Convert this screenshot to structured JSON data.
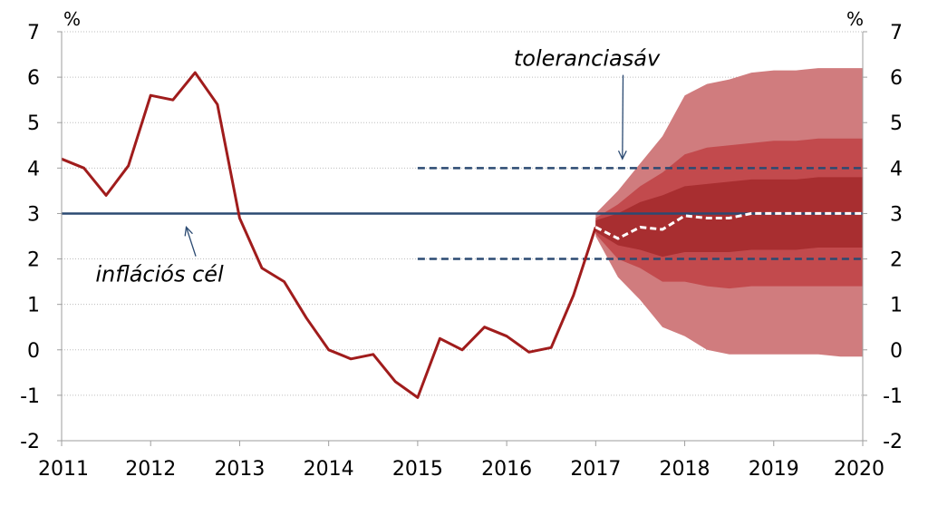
{
  "chart_data": {
    "type": "line",
    "title": "",
    "xlabel": "",
    "ylabel": "",
    "y_unit_left": "%",
    "y_unit_right": "%",
    "ylim": [
      -2,
      7
    ],
    "xlim": [
      2011,
      2020
    ],
    "y_ticks": [
      "7",
      "6",
      "5",
      "4",
      "3",
      "2",
      "1",
      "0",
      "-1",
      "-2"
    ],
    "x_ticks": [
      "2011",
      "2012",
      "2013",
      "2014",
      "2015",
      "2016",
      "2017",
      "2018",
      "2019",
      "2020"
    ],
    "grid": "horizontal",
    "series": [
      {
        "kind": "inflation-actual",
        "color": "#a01c1c",
        "x": [
          2011.0,
          2011.25,
          2011.5,
          2011.75,
          2012.0,
          2012.25,
          2012.5,
          2012.75,
          2013.0,
          2013.25,
          2013.5,
          2013.75,
          2014.0,
          2014.25,
          2014.5,
          2014.75,
          2015.0,
          2015.25,
          2015.5,
          2015.75,
          2016.0,
          2016.25,
          2016.5,
          2016.75,
          2017.0
        ],
        "y": [
          4.2,
          4.0,
          3.4,
          4.05,
          5.6,
          5.5,
          6.1,
          5.4,
          2.9,
          1.8,
          1.5,
          0.7,
          0.0,
          -0.2,
          -0.1,
          -0.7,
          -1.05,
          0.25,
          0.0,
          0.5,
          0.3,
          -0.05,
          0.05,
          1.2,
          2.7
        ]
      },
      {
        "kind": "forecast-central",
        "color": "#ffffff",
        "dashed": true,
        "x": [
          2017.0,
          2017.25,
          2017.5,
          2017.75,
          2018.0,
          2018.25,
          2018.5,
          2018.75,
          2019.0,
          2019.25,
          2019.5,
          2019.75,
          2020.0
        ],
        "y": [
          2.7,
          2.45,
          2.7,
          2.65,
          2.95,
          2.9,
          2.9,
          3.0,
          3.0,
          3.0,
          3.0,
          3.0,
          3.0
        ]
      }
    ],
    "fan_chart": {
      "x": [
        2017.0,
        2017.25,
        2017.5,
        2017.75,
        2018.0,
        2018.25,
        2018.5,
        2018.75,
        2019.0,
        2019.25,
        2019.5,
        2019.75,
        2020.0
      ],
      "bands": [
        {
          "color": "#d07c7e",
          "upper": [
            3.0,
            3.5,
            4.1,
            4.7,
            5.6,
            5.85,
            5.95,
            6.1,
            6.15,
            6.15,
            6.2,
            6.2,
            6.2
          ],
          "lower": [
            2.5,
            1.6,
            1.1,
            0.5,
            0.3,
            0.0,
            -0.1,
            -0.1,
            -0.1,
            -0.1,
            -0.1,
            -0.15,
            -0.15
          ]
        },
        {
          "color": "#c24a4d",
          "upper": [
            2.9,
            3.2,
            3.6,
            3.9,
            4.3,
            4.45,
            4.5,
            4.55,
            4.6,
            4.6,
            4.65,
            4.65,
            4.65
          ],
          "lower": [
            2.55,
            2.0,
            1.8,
            1.5,
            1.5,
            1.4,
            1.35,
            1.4,
            1.4,
            1.4,
            1.4,
            1.4,
            1.4
          ]
        },
        {
          "color": "#a82e30",
          "upper": [
            2.85,
            3.0,
            3.25,
            3.4,
            3.6,
            3.65,
            3.7,
            3.75,
            3.75,
            3.75,
            3.8,
            3.8,
            3.8
          ],
          "lower": [
            2.6,
            2.3,
            2.2,
            2.05,
            2.15,
            2.15,
            2.15,
            2.2,
            2.2,
            2.2,
            2.25,
            2.25,
            2.25
          ]
        }
      ]
    },
    "reference_lines": [
      {
        "kind": "target",
        "y": 3,
        "x_start": 2011,
        "x_end": 2020,
        "color": "#2b4a72",
        "dashed": false
      },
      {
        "kind": "tolerance-upper",
        "y": 4,
        "x_start": 2015,
        "x_end": 2020,
        "color": "#2b4a72",
        "dashed": true
      },
      {
        "kind": "tolerance-lower",
        "y": 2,
        "x_start": 2015,
        "x_end": 2020,
        "color": "#2b4a72",
        "dashed": true
      }
    ],
    "annotations": [
      {
        "text": "inflációs cél",
        "x": 2012.1,
        "y": 1.5,
        "arrow_to": [
          2012.4,
          2.7
        ]
      },
      {
        "text": "toleranciasáv",
        "x": 2016.9,
        "y": 6.25,
        "arrow_to": [
          2017.3,
          4.2
        ]
      }
    ]
  }
}
